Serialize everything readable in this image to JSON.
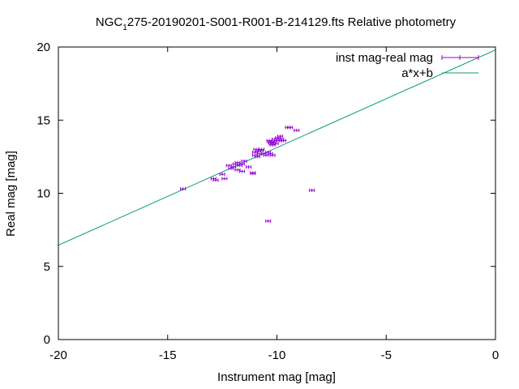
{
  "chart_data": {
    "type": "scatter",
    "title_prefix": "NGC",
    "title_subscript": "1",
    "title_suffix": "275-20190201-S001-R001-B-214129.fts Relative photometry",
    "xlabel": "Instrument mag [mag]",
    "ylabel": "Real mag [mag]",
    "xlim": [
      -20,
      0
    ],
    "ylim": [
      0,
      20
    ],
    "xticks": [
      -20,
      -15,
      -10,
      -5,
      0
    ],
    "yticks": [
      0,
      5,
      10,
      15,
      20
    ],
    "xtick_labels": [
      "-20",
      "-15",
      "-10",
      "-5",
      "0"
    ],
    "ytick_labels": [
      "0",
      "5",
      "10",
      "15",
      "20"
    ],
    "grid": false,
    "legend_position": "top-right",
    "series": [
      {
        "name": "inst mag-real mag",
        "kind": "points-with-errorbars",
        "color": "#9400d3",
        "points": [
          [
            -14.3,
            10.3
          ],
          [
            -12.9,
            11.0
          ],
          [
            -12.8,
            10.9
          ],
          [
            -12.5,
            11.3
          ],
          [
            -12.4,
            11.0
          ],
          [
            -12.2,
            11.9
          ],
          [
            -12.1,
            11.7
          ],
          [
            -12.0,
            11.8
          ],
          [
            -11.9,
            12.0
          ],
          [
            -11.8,
            11.6
          ],
          [
            -11.8,
            12.1
          ],
          [
            -11.7,
            11.9
          ],
          [
            -11.6,
            12.0
          ],
          [
            -11.6,
            11.5
          ],
          [
            -11.5,
            12.2
          ],
          [
            -11.3,
            11.8
          ],
          [
            -11.1,
            11.4
          ],
          [
            -11.1,
            11.35
          ],
          [
            -11.0,
            12.8
          ],
          [
            -11.0,
            12.6
          ],
          [
            -10.95,
            13.0
          ],
          [
            -10.9,
            12.5
          ],
          [
            -10.85,
            12.9
          ],
          [
            -10.8,
            12.7
          ],
          [
            -10.75,
            12.9
          ],
          [
            -10.7,
            13.0
          ],
          [
            -10.6,
            12.7
          ],
          [
            -10.5,
            12.6
          ],
          [
            -10.4,
            12.8
          ],
          [
            -10.35,
            13.6
          ],
          [
            -10.3,
            13.5
          ],
          [
            -10.3,
            12.7
          ],
          [
            -10.25,
            13.4
          ],
          [
            -10.2,
            13.3
          ],
          [
            -10.2,
            12.6
          ],
          [
            -10.15,
            13.5
          ],
          [
            -10.1,
            13.7
          ],
          [
            -10.05,
            13.4
          ],
          [
            -10.0,
            13.6
          ],
          [
            -9.95,
            13.8
          ],
          [
            -9.9,
            13.6
          ],
          [
            -9.85,
            13.9
          ],
          [
            -9.8,
            13.7
          ],
          [
            -9.7,
            13.6
          ],
          [
            -9.5,
            14.5
          ],
          [
            -9.4,
            14.5
          ],
          [
            -9.1,
            14.3
          ],
          [
            -10.4,
            8.1
          ],
          [
            -8.4,
            10.2
          ]
        ]
      },
      {
        "name": "a*x+b",
        "kind": "line",
        "color": "#009e73",
        "points": [
          [
            -20,
            6.45
          ],
          [
            0,
            19.8
          ]
        ]
      }
    ]
  }
}
